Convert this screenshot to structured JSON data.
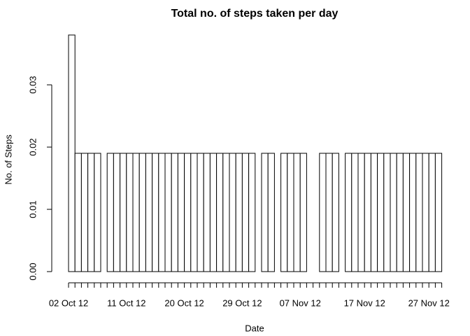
{
  "chart_data": {
    "type": "histogram",
    "title": "Total no. of steps taken per day",
    "xlabel": "Date",
    "ylabel": "No. of Steps",
    "bins": [
      0,
      1,
      2,
      3,
      4,
      5,
      6,
      7,
      8,
      9,
      10,
      11,
      12,
      13,
      14,
      15,
      16,
      17,
      18,
      19,
      20,
      21,
      22,
      23,
      24,
      25,
      26,
      27,
      28,
      29,
      30,
      31,
      32,
      33,
      34,
      35,
      36,
      37,
      38,
      39,
      40,
      41,
      42,
      43,
      44,
      45,
      46,
      47,
      48,
      49,
      50,
      51,
      52,
      53,
      54,
      55,
      56,
      57,
      58
    ],
    "values": [
      0.038,
      0.019,
      0.019,
      0.019,
      0.019,
      0,
      0.019,
      0.019,
      0.019,
      0.019,
      0.019,
      0.019,
      0.019,
      0.019,
      0.019,
      0.019,
      0.019,
      0.019,
      0.019,
      0.019,
      0.019,
      0.019,
      0.019,
      0.019,
      0.019,
      0.019,
      0.019,
      0.019,
      0.019,
      0,
      0.019,
      0.019,
      0,
      0.019,
      0.019,
      0.019,
      0.019,
      0,
      0,
      0.019,
      0.019,
      0.019,
      0,
      0.019,
      0.019,
      0.019,
      0.019,
      0.019,
      0.019,
      0.019,
      0.019,
      0.019,
      0.019,
      0.019,
      0.019,
      0.019,
      0.019,
      0.019
    ],
    "xlim": [
      0,
      58
    ],
    "xticks": [
      {
        "value": 0,
        "label": "02 Oct 12"
      },
      {
        "value": 9,
        "label": "11 Oct 12"
      },
      {
        "value": 18,
        "label": "20 Oct 12"
      },
      {
        "value": 27,
        "label": "29 Oct 12"
      },
      {
        "value": 36,
        "label": "07 Nov 12"
      },
      {
        "value": 46,
        "label": "17 Nov 12"
      },
      {
        "value": 56,
        "label": "27 Nov 12"
      }
    ],
    "ylim": [
      0,
      0.038
    ],
    "yticks": [
      {
        "value": 0,
        "label": "0.00"
      },
      {
        "value": 0.01,
        "label": "0.01"
      },
      {
        "value": 0.02,
        "label": "0.02"
      },
      {
        "value": 0.03,
        "label": "0.03"
      }
    ],
    "color": "#ffffff"
  }
}
